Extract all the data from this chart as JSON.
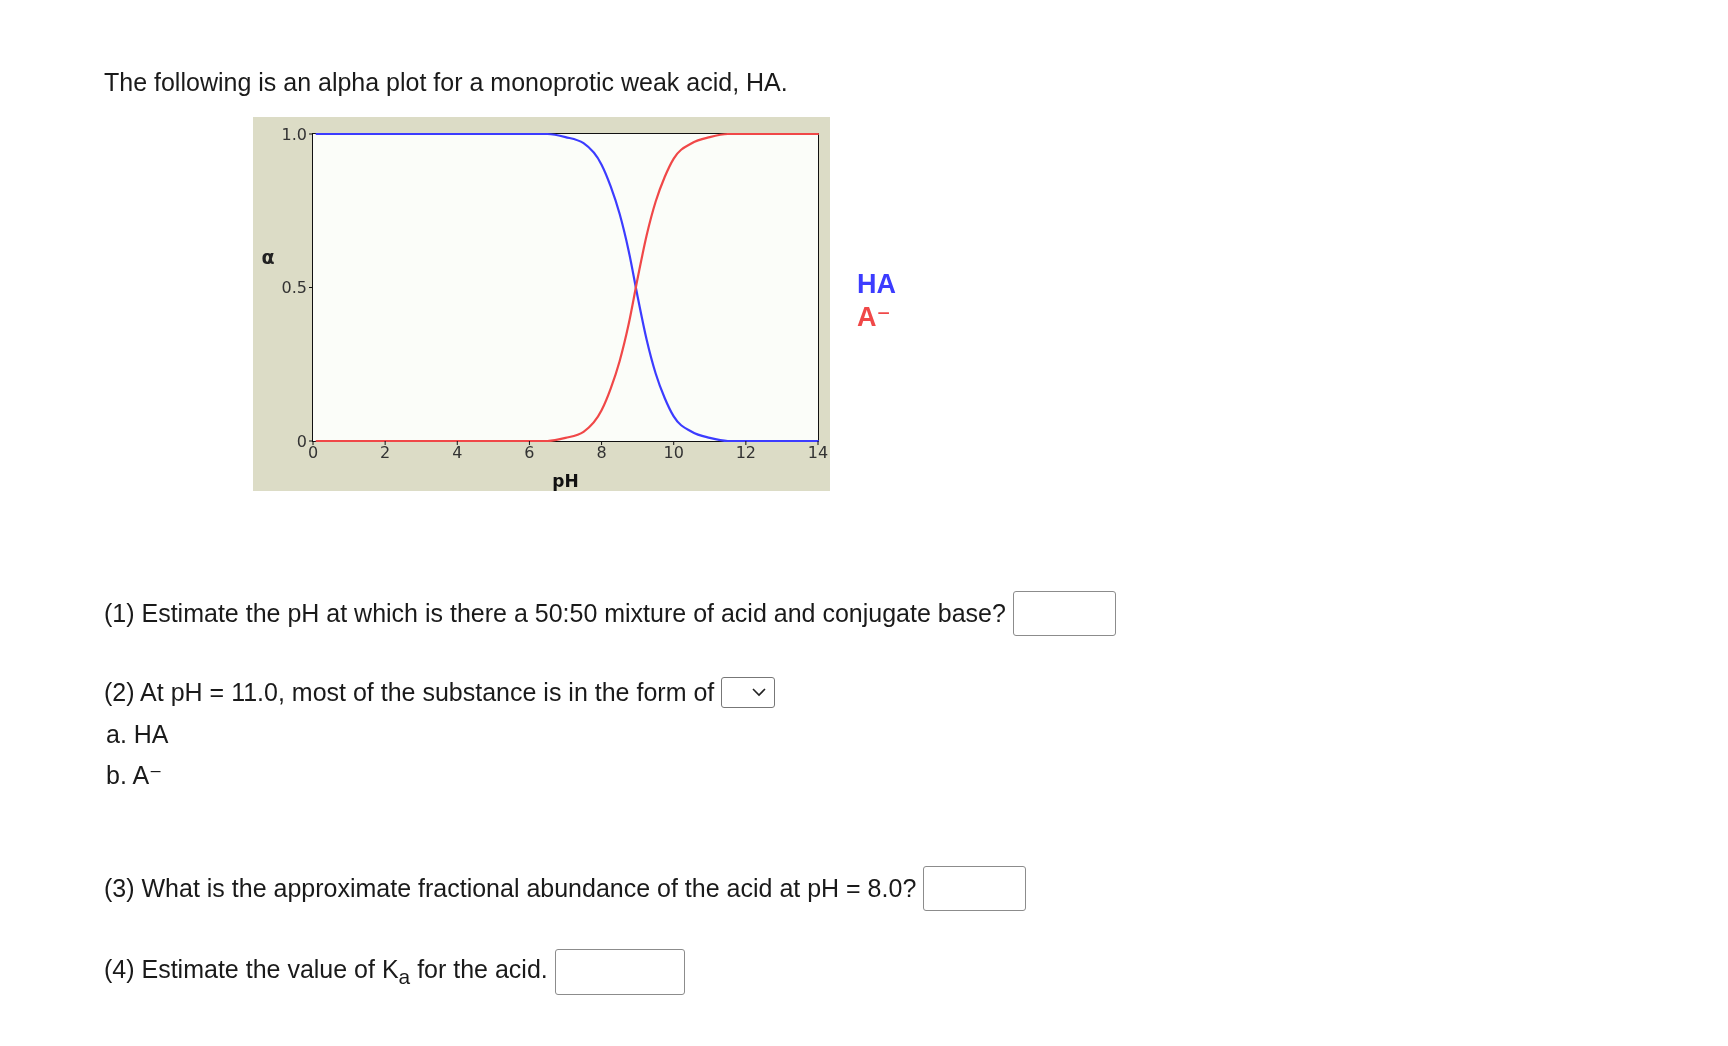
{
  "chart_data": {
    "type": "line",
    "title": "The following is an alpha plot for a monoprotic weak acid, HA.",
    "xlabel": "pH",
    "ylabel": "α",
    "x": [
      0.1,
      1,
      2,
      3,
      4,
      5,
      6,
      6.5,
      7,
      7.5,
      8,
      8.25,
      8.5,
      8.75,
      9,
      9.25,
      9.5,
      9.75,
      10,
      10.5,
      11,
      11.5,
      12,
      13,
      14
    ],
    "series": [
      {
        "name": "HA",
        "color": "#3c3cff",
        "values": [
          1,
          1,
          1,
          1,
          1,
          1,
          1,
          1,
          0.99,
          0.97,
          0.9,
          0.83,
          0.74,
          0.62,
          0.47,
          0.33,
          0.22,
          0.14,
          0.08,
          0.03,
          0.01,
          0,
          0,
          0,
          0
        ]
      },
      {
        "name": "A⁻",
        "color": "#f04848",
        "values": [
          0,
          0,
          0,
          0,
          0,
          0,
          0,
          0,
          0.01,
          0.03,
          0.1,
          0.17,
          0.26,
          0.38,
          0.53,
          0.67,
          0.78,
          0.86,
          0.92,
          0.97,
          0.99,
          1,
          1,
          1,
          1
        ]
      }
    ],
    "xlim": [
      0,
      14
    ],
    "xticks": [
      0,
      2,
      4,
      6,
      8,
      10,
      12,
      14
    ],
    "ylim": [
      0,
      1
    ],
    "yticks": [
      0,
      0.5,
      {
        "value": 1,
        "label": "1.0"
      }
    ],
    "legend": "right",
    "annotations": [
      "(1) Estimate the pH at which is there a 50:50 mixture of acid and conjugate base?",
      "(2) At pH = 11.0, most of the substance is in the form of",
      "a. HA",
      "b. A⁻",
      "(3) What is the approximate fractional abundance of the acid at pH = 8.0?",
      "(4) Estimate the value of K$_{a}$ for the acid."
    ]
  }
}
